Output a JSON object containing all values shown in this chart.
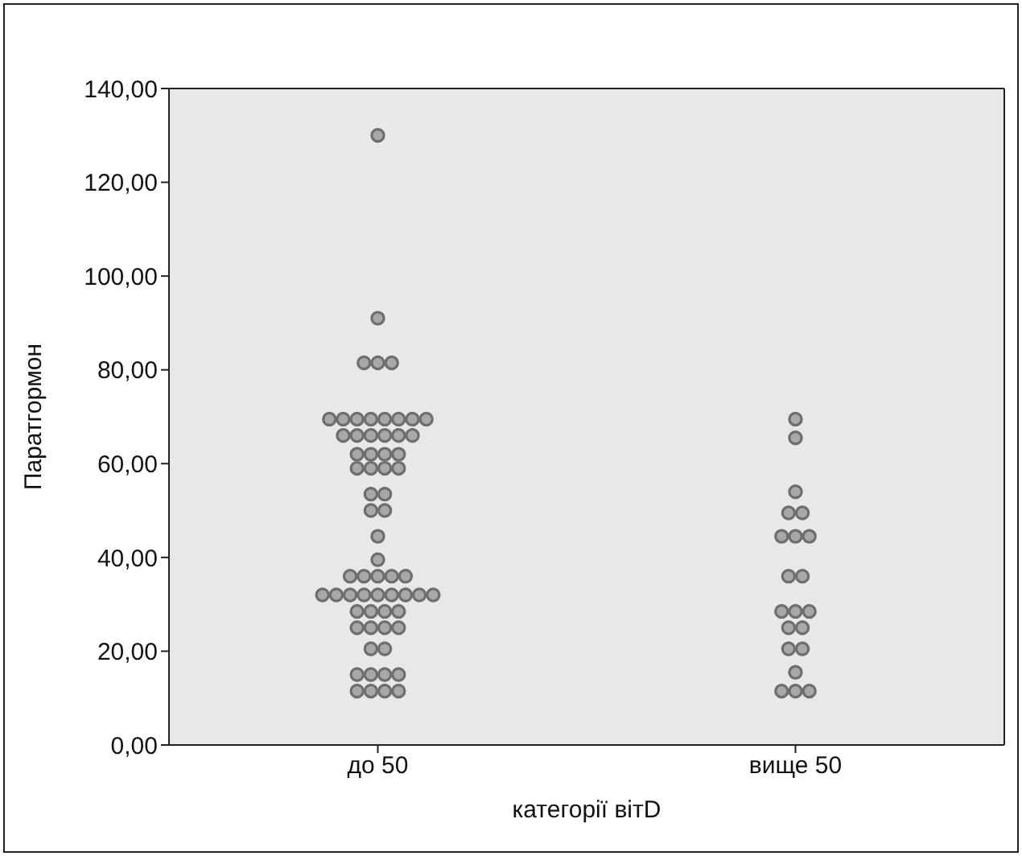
{
  "chart_data": {
    "type": "scatter",
    "xlabel": "категорії вітD",
    "ylabel": "Паратгормон",
    "categories": [
      "до 50",
      "вище 50"
    ],
    "ylim": [
      0,
      140
    ],
    "yticks": [
      {
        "value": 0,
        "label": "0,00"
      },
      {
        "value": 20,
        "label": "20,00"
      },
      {
        "value": 40,
        "label": "40,00"
      },
      {
        "value": 60,
        "label": "60,00"
      },
      {
        "value": 80,
        "label": "80,00"
      },
      {
        "value": 100,
        "label": "100,00"
      },
      {
        "value": 120,
        "label": "120,00"
      },
      {
        "value": 140,
        "label": "140,00"
      }
    ],
    "marker": "circle",
    "series": [
      {
        "color": "#a8a8a8",
        "x": [
          "до 50",
          "до 50",
          "до 50",
          "до 50",
          "до 50",
          "до 50",
          "до 50",
          "до 50",
          "до 50",
          "до 50",
          "до 50",
          "до 50",
          "до 50",
          "до 50",
          "до 50",
          "до 50",
          "до 50",
          "до 50",
          "до 50",
          "до 50",
          "до 50",
          "до 50",
          "до 50",
          "до 50",
          "до 50",
          "до 50",
          "до 50",
          "до 50",
          "до 50",
          "до 50",
          "до 50",
          "до 50",
          "до 50",
          "до 50",
          "до 50",
          "до 50",
          "до 50",
          "до 50",
          "до 50",
          "до 50",
          "до 50",
          "до 50",
          "до 50",
          "до 50",
          "до 50",
          "до 50",
          "до 50",
          "до 50",
          "до 50",
          "до 50",
          "до 50",
          "до 50",
          "до 50",
          "до 50",
          "до 50",
          "до 50",
          "до 50",
          "до 50",
          "до 50",
          "до 50",
          "до 50"
        ],
        "values": [
          130,
          91,
          81.5,
          81.5,
          81.5,
          69.5,
          69.5,
          69.5,
          69.5,
          69.5,
          69.5,
          69.5,
          69.5,
          66,
          66,
          66,
          66,
          66,
          66,
          62,
          62,
          62,
          62,
          59,
          59,
          59,
          59,
          53.5,
          53.5,
          50,
          50,
          44.5,
          39.5,
          36,
          36,
          36,
          36,
          36,
          32,
          32,
          32,
          32,
          32,
          32,
          32,
          32,
          32,
          28.5,
          28.5,
          28.5,
          28.5,
          25,
          25,
          25,
          25,
          20.5,
          20.5,
          15,
          15,
          15,
          15
        ]
      },
      {
        "color": "#a8a8a8",
        "x": [
          "до 50",
          "до 50",
          "до 50",
          "до 50",
          "вище 50",
          "вище 50",
          "вище 50",
          "вище 50",
          "вище 50",
          "вище 50",
          "вище 50",
          "вище 50",
          "вище 50",
          "вище 50",
          "вище 50",
          "вище 50",
          "вище 50",
          "вище 50",
          "вище 50",
          "вище 50",
          "вище 50",
          "вище 50",
          "вище 50",
          "вище 50",
          "вище 50"
        ],
        "values": [
          11.5,
          11.5,
          11.5,
          11.5,
          69.5,
          65.5,
          54,
          49.5,
          49.5,
          44.5,
          44.5,
          44.5,
          36,
          36,
          28.5,
          28.5,
          28.5,
          25,
          25,
          20.5,
          20.5,
          15.5,
          11.5,
          11.5,
          11.5
        ]
      }
    ]
  }
}
